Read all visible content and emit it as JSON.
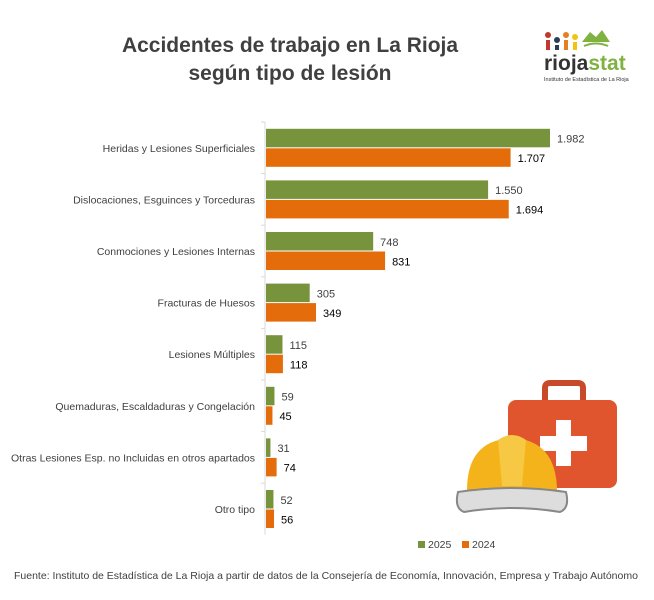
{
  "title_line1": "Accidentes de trabajo en La Rioja",
  "title_line2": "según tipo de lesión",
  "logo": {
    "name": "riojastat",
    "subtitle": "Instituto de Estadística de La Rioja"
  },
  "source": "Fuente: Instituto de Estadística de La Rioja a partir de datos de la Consejería de Economía, Innovación, Empresa y Trabajo Autónomo",
  "icons": [
    "first-aid-kit-icon",
    "hard-hat-icon"
  ],
  "chart_data": {
    "type": "bar",
    "orientation": "horizontal",
    "categories": [
      "Heridas y Lesiones Superficiales",
      "Dislocaciones, Esguinces y Torceduras",
      "Conmociones y Lesiones Internas",
      "Fracturas de Huesos",
      "Lesiones Múltiples",
      "Quemaduras, Escaldaduras y Congelación",
      "Otras Lesiones Esp. no Incluidas en otros apartados",
      "Otro tipo"
    ],
    "series": [
      {
        "name": "2025",
        "color": "#77933c",
        "values": [
          1982,
          1550,
          748,
          305,
          115,
          59,
          31,
          52
        ],
        "labels": [
          "1.982",
          "1.550",
          "748",
          "305",
          "115",
          "59",
          "31",
          "52"
        ]
      },
      {
        "name": "2024",
        "color": "#e46c0a",
        "values": [
          1707,
          1694,
          831,
          349,
          118,
          45,
          74,
          56
        ],
        "labels": [
          "1.707",
          "1.694",
          "831",
          "349",
          "118",
          "45",
          "74",
          "56"
        ]
      }
    ],
    "legend_position": "bottom-right",
    "grid": false
  }
}
